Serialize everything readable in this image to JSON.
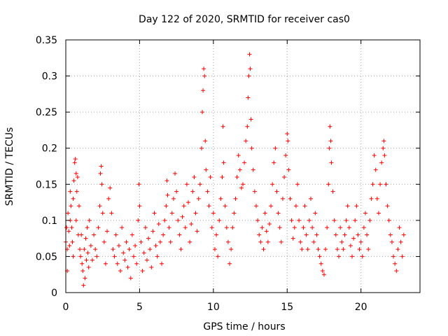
{
  "chart_data": {
    "type": "scatter",
    "title": "Day 122 of 2020, SRMTID for receiver cas0",
    "xlabel": "GPS time / hours",
    "ylabel": "SRMTID / TECUs",
    "xlim": [
      0,
      24
    ],
    "ylim": [
      0,
      0.35
    ],
    "x_ticks": [
      0,
      5,
      10,
      15,
      20
    ],
    "x_tick_labels": [
      "0",
      "5",
      "10",
      "15",
      "20"
    ],
    "y_ticks": [
      0,
      0.05,
      0.1,
      0.15,
      0.2,
      0.25,
      0.3,
      0.35
    ],
    "y_tick_labels": [
      "0",
      "0.05",
      "0.1",
      "0.15",
      "0.2",
      "0.25",
      "0.3",
      "0.35"
    ],
    "grid": true,
    "marker": "plus",
    "series": [
      {
        "name": "cas0",
        "color": "#ff0000",
        "points": [
          [
            0.0,
            0.07
          ],
          [
            0.05,
            0.09
          ],
          [
            0.1,
            0.03
          ],
          [
            0.1,
            0.06
          ],
          [
            0.15,
            0.11
          ],
          [
            0.2,
            0.085
          ],
          [
            0.25,
            0.065
          ],
          [
            0.3,
            0.14
          ],
          [
            0.3,
            0.1
          ],
          [
            0.35,
            0.12
          ],
          [
            0.4,
            0.09
          ],
          [
            0.45,
            0.07
          ],
          [
            0.5,
            0.13
          ],
          [
            0.5,
            0.05
          ],
          [
            0.55,
            0.155
          ],
          [
            0.6,
            0.18
          ],
          [
            0.65,
            0.185
          ],
          [
            0.7,
            0.165
          ],
          [
            0.7,
            0.1
          ],
          [
            0.75,
            0.14
          ],
          [
            0.8,
            0.16
          ],
          [
            0.85,
            0.08
          ],
          [
            0.9,
            0.12
          ],
          [
            0.95,
            0.06
          ],
          [
            1.0,
            0.05
          ],
          [
            1.05,
            0.08
          ],
          [
            1.1,
            0.04
          ],
          [
            1.15,
            0.03
          ],
          [
            1.2,
            0.01
          ],
          [
            1.25,
            0.06
          ],
          [
            1.3,
            0.02
          ],
          [
            1.35,
            0.075
          ],
          [
            1.4,
            0.045
          ],
          [
            1.45,
            0.09
          ],
          [
            1.5,
            0.055
          ],
          [
            1.55,
            0.035
          ],
          [
            1.6,
            0.1
          ],
          [
            1.7,
            0.065
          ],
          [
            1.8,
            0.045
          ],
          [
            1.9,
            0.08
          ],
          [
            2.0,
            0.06
          ],
          [
            2.1,
            0.05
          ],
          [
            2.2,
            0.09
          ],
          [
            2.3,
            0.12
          ],
          [
            2.35,
            0.165
          ],
          [
            2.4,
            0.175
          ],
          [
            2.45,
            0.15
          ],
          [
            2.5,
            0.11
          ],
          [
            2.6,
            0.07
          ],
          [
            2.7,
            0.04
          ],
          [
            2.8,
            0.085
          ],
          [
            2.9,
            0.13
          ],
          [
            3.0,
            0.145
          ],
          [
            3.1,
            0.11
          ],
          [
            3.2,
            0.06
          ],
          [
            3.3,
            0.05
          ],
          [
            3.4,
            0.08
          ],
          [
            3.5,
            0.04
          ],
          [
            3.6,
            0.065
          ],
          [
            3.7,
            0.03
          ],
          [
            3.8,
            0.09
          ],
          [
            3.9,
            0.055
          ],
          [
            4.0,
            0.045
          ],
          [
            4.1,
            0.07
          ],
          [
            4.2,
            0.035
          ],
          [
            4.3,
            0.06
          ],
          [
            4.4,
            0.02
          ],
          [
            4.5,
            0.08
          ],
          [
            4.6,
            0.05
          ],
          [
            4.7,
            0.065
          ],
          [
            4.8,
            0.04
          ],
          [
            4.9,
            0.1
          ],
          [
            4.95,
            0.15
          ],
          [
            5.0,
            0.12
          ],
          [
            5.1,
            0.07
          ],
          [
            5.2,
            0.03
          ],
          [
            5.3,
            0.055
          ],
          [
            5.4,
            0.09
          ],
          [
            5.5,
            0.045
          ],
          [
            5.6,
            0.075
          ],
          [
            5.7,
            0.06
          ],
          [
            5.8,
            0.035
          ],
          [
            5.9,
            0.085
          ],
          [
            6.0,
            0.11
          ],
          [
            6.1,
            0.065
          ],
          [
            6.2,
            0.05
          ],
          [
            6.3,
            0.095
          ],
          [
            6.4,
            0.07
          ],
          [
            6.5,
            0.04
          ],
          [
            6.6,
            0.08
          ],
          [
            6.7,
            0.1
          ],
          [
            6.8,
            0.12
          ],
          [
            6.85,
            0.155
          ],
          [
            6.9,
            0.135
          ],
          [
            7.0,
            0.09
          ],
          [
            7.1,
            0.07
          ],
          [
            7.2,
            0.11
          ],
          [
            7.3,
            0.13
          ],
          [
            7.4,
            0.165
          ],
          [
            7.5,
            0.14
          ],
          [
            7.6,
            0.1
          ],
          [
            7.7,
            0.08
          ],
          [
            7.8,
            0.06
          ],
          [
            7.9,
            0.105
          ],
          [
            8.0,
            0.12
          ],
          [
            8.1,
            0.09
          ],
          [
            8.2,
            0.15
          ],
          [
            8.3,
            0.125
          ],
          [
            8.4,
            0.07
          ],
          [
            8.5,
            0.095
          ],
          [
            8.6,
            0.14
          ],
          [
            8.7,
            0.16
          ],
          [
            8.8,
            0.11
          ],
          [
            8.9,
            0.085
          ],
          [
            9.0,
            0.13
          ],
          [
            9.1,
            0.15
          ],
          [
            9.2,
            0.2
          ],
          [
            9.25,
            0.25
          ],
          [
            9.3,
            0.28
          ],
          [
            9.35,
            0.31
          ],
          [
            9.4,
            0.3
          ],
          [
            9.45,
            0.21
          ],
          [
            9.5,
            0.17
          ],
          [
            9.6,
            0.14
          ],
          [
            9.7,
            0.12
          ],
          [
            9.8,
            0.16
          ],
          [
            9.9,
            0.09
          ],
          [
            10.0,
            0.11
          ],
          [
            10.1,
            0.06
          ],
          [
            10.2,
            0.08
          ],
          [
            10.3,
            0.05
          ],
          [
            10.4,
            0.1
          ],
          [
            10.5,
            0.13
          ],
          [
            10.6,
            0.16
          ],
          [
            10.65,
            0.23
          ],
          [
            10.7,
            0.18
          ],
          [
            10.8,
            0.12
          ],
          [
            10.9,
            0.09
          ],
          [
            11.0,
            0.07
          ],
          [
            11.1,
            0.04
          ],
          [
            11.2,
            0.06
          ],
          [
            11.3,
            0.09
          ],
          [
            11.4,
            0.11
          ],
          [
            11.5,
            0.13
          ],
          [
            11.6,
            0.16
          ],
          [
            11.7,
            0.19
          ],
          [
            11.8,
            0.17
          ],
          [
            11.9,
            0.145
          ],
          [
            12.0,
            0.15
          ],
          [
            12.1,
            0.18
          ],
          [
            12.2,
            0.21
          ],
          [
            12.3,
            0.23
          ],
          [
            12.35,
            0.27
          ],
          [
            12.4,
            0.3
          ],
          [
            12.45,
            0.33
          ],
          [
            12.5,
            0.31
          ],
          [
            12.55,
            0.24
          ],
          [
            12.6,
            0.2
          ],
          [
            12.7,
            0.17
          ],
          [
            12.8,
            0.14
          ],
          [
            12.9,
            0.12
          ],
          [
            13.0,
            0.1
          ],
          [
            13.1,
            0.08
          ],
          [
            13.2,
            0.07
          ],
          [
            13.3,
            0.09
          ],
          [
            13.4,
            0.06
          ],
          [
            13.5,
            0.11
          ],
          [
            13.6,
            0.085
          ],
          [
            13.7,
            0.07
          ],
          [
            13.8,
            0.095
          ],
          [
            13.9,
            0.12
          ],
          [
            14.0,
            0.15
          ],
          [
            14.1,
            0.18
          ],
          [
            14.2,
            0.2
          ],
          [
            14.3,
            0.14
          ],
          [
            14.4,
            0.11
          ],
          [
            14.5,
            0.09
          ],
          [
            14.6,
            0.07
          ],
          [
            14.7,
            0.13
          ],
          [
            14.8,
            0.16
          ],
          [
            14.9,
            0.19
          ],
          [
            15.0,
            0.22
          ],
          [
            15.05,
            0.21
          ],
          [
            15.1,
            0.17
          ],
          [
            15.2,
            0.13
          ],
          [
            15.3,
            0.1
          ],
          [
            15.4,
            0.075
          ],
          [
            15.5,
            0.09
          ],
          [
            15.6,
            0.12
          ],
          [
            15.7,
            0.15
          ],
          [
            15.8,
            0.1
          ],
          [
            15.9,
            0.07
          ],
          [
            16.0,
            0.06
          ],
          [
            16.1,
            0.09
          ],
          [
            16.2,
            0.12
          ],
          [
            16.3,
            0.08
          ],
          [
            16.4,
            0.06
          ],
          [
            16.5,
            0.1
          ],
          [
            16.6,
            0.13
          ],
          [
            16.7,
            0.09
          ],
          [
            16.8,
            0.07
          ],
          [
            16.9,
            0.11
          ],
          [
            17.0,
            0.08
          ],
          [
            17.1,
            0.06
          ],
          [
            17.2,
            0.05
          ],
          [
            17.3,
            0.04
          ],
          [
            17.4,
            0.03
          ],
          [
            17.5,
            0.025
          ],
          [
            17.6,
            0.06
          ],
          [
            17.7,
            0.09
          ],
          [
            17.8,
            0.15
          ],
          [
            17.85,
            0.2
          ],
          [
            17.9,
            0.23
          ],
          [
            17.95,
            0.21
          ],
          [
            18.0,
            0.18
          ],
          [
            18.1,
            0.14
          ],
          [
            18.2,
            0.1
          ],
          [
            18.3,
            0.08
          ],
          [
            18.4,
            0.06
          ],
          [
            18.5,
            0.05
          ],
          [
            18.6,
            0.09
          ],
          [
            18.7,
            0.07
          ],
          [
            18.8,
            0.06
          ],
          [
            18.9,
            0.08
          ],
          [
            19.0,
            0.1
          ],
          [
            19.1,
            0.12
          ],
          [
            19.2,
            0.09
          ],
          [
            19.3,
            0.065
          ],
          [
            19.4,
            0.05
          ],
          [
            19.5,
            0.075
          ],
          [
            19.6,
            0.1
          ],
          [
            19.7,
            0.12
          ],
          [
            19.8,
            0.08
          ],
          [
            19.9,
            0.06
          ],
          [
            20.0,
            0.07
          ],
          [
            20.1,
            0.05
          ],
          [
            20.2,
            0.09
          ],
          [
            20.3,
            0.11
          ],
          [
            20.4,
            0.08
          ],
          [
            20.5,
            0.06
          ],
          [
            20.6,
            0.1
          ],
          [
            20.7,
            0.13
          ],
          [
            20.8,
            0.15
          ],
          [
            20.9,
            0.19
          ],
          [
            21.0,
            0.17
          ],
          [
            21.1,
            0.13
          ],
          [
            21.2,
            0.11
          ],
          [
            21.3,
            0.15
          ],
          [
            21.4,
            0.18
          ],
          [
            21.5,
            0.2
          ],
          [
            21.55,
            0.21
          ],
          [
            21.6,
            0.19
          ],
          [
            21.7,
            0.15
          ],
          [
            21.8,
            0.12
          ],
          [
            21.9,
            0.1
          ],
          [
            22.0,
            0.08
          ],
          [
            22.1,
            0.07
          ],
          [
            22.2,
            0.05
          ],
          [
            22.3,
            0.04
          ],
          [
            22.4,
            0.03
          ],
          [
            22.5,
            0.06
          ],
          [
            22.6,
            0.09
          ],
          [
            22.7,
            0.07
          ],
          [
            22.8,
            0.05
          ],
          [
            22.9,
            0.08
          ]
        ]
      }
    ]
  }
}
